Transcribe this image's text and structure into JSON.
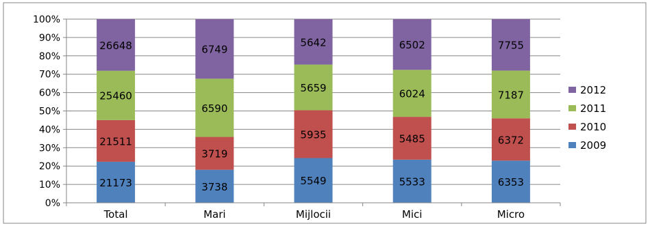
{
  "chart_data": {
    "type": "bar",
    "stacked": "percent",
    "categories": [
      "Total",
      "Mari",
      "Mijlocii",
      "Mici",
      "Micro"
    ],
    "series": [
      {
        "name": "2009",
        "values": [
          21173,
          3738,
          5549,
          5533,
          6353
        ],
        "color": "#4F81BD"
      },
      {
        "name": "2010",
        "values": [
          21511,
          3719,
          5935,
          5485,
          6372
        ],
        "color": "#C0504D"
      },
      {
        "name": "2011",
        "values": [
          25460,
          6590,
          5659,
          6024,
          7187
        ],
        "color": "#9BBB59"
      },
      {
        "name": "2012",
        "values": [
          26648,
          6749,
          5642,
          6502,
          7755
        ],
        "color": "#8064A2"
      }
    ],
    "y_ticks": [
      "0%",
      "10%",
      "20%",
      "30%",
      "40%",
      "50%",
      "60%",
      "70%",
      "80%",
      "90%",
      "100%"
    ],
    "ylim": [
      0,
      100
    ],
    "grid": true,
    "legend_position": "right",
    "title": "",
    "xlabel": "",
    "ylabel": ""
  }
}
